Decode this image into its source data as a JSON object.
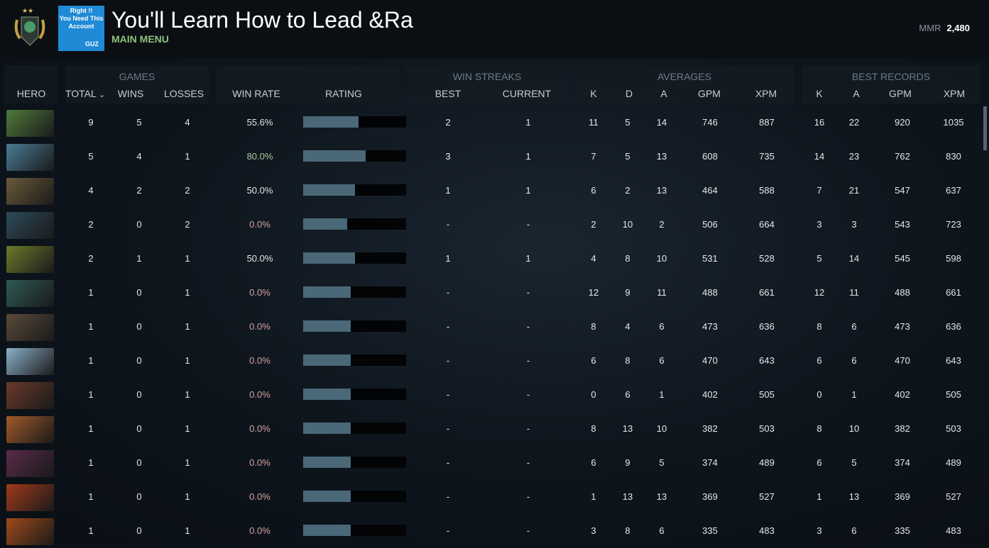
{
  "header": {
    "title": "You'll Learn How to Lead &Ra",
    "subtitle": "MAIN MENU",
    "avatar_text": [
      "Right !!",
      "You Need This",
      "Account",
      "GUZ"
    ],
    "mmr_label": "MMR",
    "mmr_value": "2,480"
  },
  "groups": {
    "games": "GAMES",
    "win_streaks": "WIN STREAKS",
    "averages": "AVERAGES",
    "best_records": "BEST RECORDS"
  },
  "columns": {
    "hero": "HERO",
    "total": "TOTAL",
    "wins": "WINS",
    "losses": "LOSSES",
    "win_rate": "WIN RATE",
    "rating": "RATING",
    "best": "BEST",
    "current": "CURRENT",
    "k": "K",
    "d": "D",
    "a": "A",
    "gpm": "GPM",
    "xpm": "XPM",
    "bk": "K",
    "ba": "A",
    "bgpm": "GPM",
    "bxpm": "XPM"
  },
  "colors": {
    "hero": [
      "#4f7a3a",
      "#4a7c95",
      "#6b5a3a",
      "#2d4a5a",
      "#6b7a2a",
      "#2f5a55",
      "#5a4a3a",
      "#8ab0c8",
      "#6a3a2a",
      "#a05a2a",
      "#5a2a4a",
      "#a03a1a",
      "#a04a1a"
    ],
    "bar_fill": "#4a6877",
    "win_good": "#a8c89a",
    "win_zero": "#d4a4a4"
  },
  "rows": [
    {
      "total": "9",
      "wins": "5",
      "losses": "4",
      "win_rate": "55.6%",
      "rating": 0.54,
      "best": "2",
      "current": "1",
      "k": "11",
      "d": "5",
      "a": "14",
      "gpm": "746",
      "xpm": "887",
      "bk": "16",
      "ba": "22",
      "bgpm": "920",
      "bxpm": "1035"
    },
    {
      "total": "5",
      "wins": "4",
      "losses": "1",
      "win_rate": "80.0%",
      "rating": 0.61,
      "best": "3",
      "current": "1",
      "k": "7",
      "d": "5",
      "a": "13",
      "gpm": "608",
      "xpm": "735",
      "bk": "14",
      "ba": "23",
      "bgpm": "762",
      "bxpm": "830"
    },
    {
      "total": "4",
      "wins": "2",
      "losses": "2",
      "win_rate": "50.0%",
      "rating": 0.5,
      "best": "1",
      "current": "1",
      "k": "6",
      "d": "2",
      "a": "13",
      "gpm": "464",
      "xpm": "588",
      "bk": "7",
      "ba": "21",
      "bgpm": "547",
      "bxpm": "637"
    },
    {
      "total": "2",
      "wins": "0",
      "losses": "2",
      "win_rate": "0.0%",
      "rating": 0.43,
      "best": "-",
      "current": "-",
      "k": "2",
      "d": "10",
      "a": "2",
      "gpm": "506",
      "xpm": "664",
      "bk": "3",
      "ba": "3",
      "bgpm": "543",
      "bxpm": "723"
    },
    {
      "total": "2",
      "wins": "1",
      "losses": "1",
      "win_rate": "50.0%",
      "rating": 0.5,
      "best": "1",
      "current": "1",
      "k": "4",
      "d": "8",
      "a": "10",
      "gpm": "531",
      "xpm": "528",
      "bk": "5",
      "ba": "14",
      "bgpm": "545",
      "bxpm": "598"
    },
    {
      "total": "1",
      "wins": "0",
      "losses": "1",
      "win_rate": "0.0%",
      "rating": 0.46,
      "best": "-",
      "current": "-",
      "k": "12",
      "d": "9",
      "a": "11",
      "gpm": "488",
      "xpm": "661",
      "bk": "12",
      "ba": "11",
      "bgpm": "488",
      "bxpm": "661"
    },
    {
      "total": "1",
      "wins": "0",
      "losses": "1",
      "win_rate": "0.0%",
      "rating": 0.46,
      "best": "-",
      "current": "-",
      "k": "8",
      "d": "4",
      "a": "6",
      "gpm": "473",
      "xpm": "636",
      "bk": "8",
      "ba": "6",
      "bgpm": "473",
      "bxpm": "636"
    },
    {
      "total": "1",
      "wins": "0",
      "losses": "1",
      "win_rate": "0.0%",
      "rating": 0.46,
      "best": "-",
      "current": "-",
      "k": "6",
      "d": "8",
      "a": "6",
      "gpm": "470",
      "xpm": "643",
      "bk": "6",
      "ba": "6",
      "bgpm": "470",
      "bxpm": "643"
    },
    {
      "total": "1",
      "wins": "0",
      "losses": "1",
      "win_rate": "0.0%",
      "rating": 0.46,
      "best": "-",
      "current": "-",
      "k": "0",
      "d": "6",
      "a": "1",
      "gpm": "402",
      "xpm": "505",
      "bk": "0",
      "ba": "1",
      "bgpm": "402",
      "bxpm": "505"
    },
    {
      "total": "1",
      "wins": "0",
      "losses": "1",
      "win_rate": "0.0%",
      "rating": 0.46,
      "best": "-",
      "current": "-",
      "k": "8",
      "d": "13",
      "a": "10",
      "gpm": "382",
      "xpm": "503",
      "bk": "8",
      "ba": "10",
      "bgpm": "382",
      "bxpm": "503"
    },
    {
      "total": "1",
      "wins": "0",
      "losses": "1",
      "win_rate": "0.0%",
      "rating": 0.46,
      "best": "-",
      "current": "-",
      "k": "6",
      "d": "9",
      "a": "5",
      "gpm": "374",
      "xpm": "489",
      "bk": "6",
      "ba": "5",
      "bgpm": "374",
      "bxpm": "489"
    },
    {
      "total": "1",
      "wins": "0",
      "losses": "1",
      "win_rate": "0.0%",
      "rating": 0.46,
      "best": "-",
      "current": "-",
      "k": "1",
      "d": "13",
      "a": "13",
      "gpm": "369",
      "xpm": "527",
      "bk": "1",
      "ba": "13",
      "bgpm": "369",
      "bxpm": "527"
    },
    {
      "total": "1",
      "wins": "0",
      "losses": "1",
      "win_rate": "0.0%",
      "rating": 0.46,
      "best": "-",
      "current": "-",
      "k": "3",
      "d": "8",
      "a": "6",
      "gpm": "335",
      "xpm": "483",
      "bk": "3",
      "ba": "6",
      "bgpm": "335",
      "bxpm": "483"
    }
  ]
}
